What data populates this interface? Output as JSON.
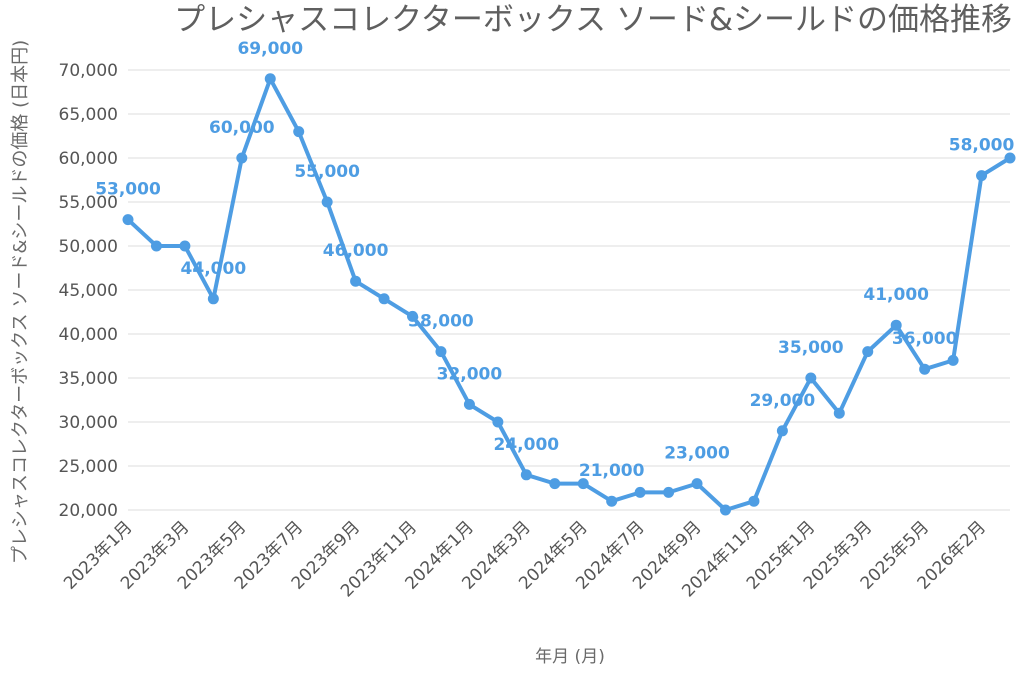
{
  "chart_data": {
    "type": "line",
    "title": "プレシャスコレクターボックス ソード&シールドの価格推移",
    "xlabel": "年月 (月)",
    "ylabel": "プレシャスコレクターボックス ソード&シールドの価格 (日本円)",
    "ylim": [
      20000,
      70000
    ],
    "yticks": [
      "20,000",
      "25,000",
      "30,000",
      "35,000",
      "40,000",
      "45,000",
      "50,000",
      "55,000",
      "60,000",
      "65,000",
      "70,000"
    ],
    "tick_labels": [
      "2023年1月",
      "2023年3月",
      "2023年5月",
      "2023年7月",
      "2023年9月",
      "2023年11月",
      "2024年1月",
      "2024年3月",
      "2024年5月",
      "2024年7月",
      "2024年9月",
      "2024年11月",
      "2025年1月",
      "2025年3月",
      "2025年5月",
      "2026年2月"
    ],
    "grid": true,
    "series": [
      {
        "color": "#4e9de3",
        "values": [
          53000,
          50000,
          50000,
          44000,
          60000,
          69000,
          63000,
          55000,
          46000,
          44000,
          42000,
          38000,
          32000,
          30000,
          24000,
          23000,
          23000,
          21000,
          22000,
          22000,
          23000,
          20000,
          21000,
          29000,
          35000,
          31000,
          38000,
          41000,
          36000,
          37000,
          58000,
          60000
        ],
        "data_labels": [
          {
            "index": 0,
            "text": "53,000"
          },
          {
            "index": 3,
            "text": "44,000"
          },
          {
            "index": 4,
            "text": "60,000"
          },
          {
            "index": 5,
            "text": "69,000"
          },
          {
            "index": 7,
            "text": "55,000"
          },
          {
            "index": 8,
            "text": "46,000"
          },
          {
            "index": 11,
            "text": "38,000"
          },
          {
            "index": 12,
            "text": "32,000"
          },
          {
            "index": 14,
            "text": "24,000"
          },
          {
            "index": 17,
            "text": "21,000"
          },
          {
            "index": 20,
            "text": "23,000"
          },
          {
            "index": 23,
            "text": "29,000"
          },
          {
            "index": 24,
            "text": "35,000"
          },
          {
            "index": 27,
            "text": "41,000"
          },
          {
            "index": 28,
            "text": "36,000"
          },
          {
            "index": 30,
            "text": "58,000"
          }
        ]
      }
    ]
  }
}
